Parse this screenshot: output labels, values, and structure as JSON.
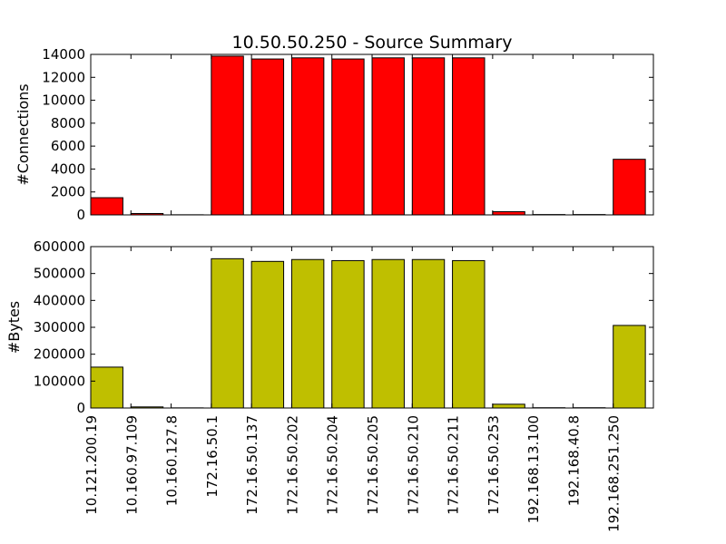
{
  "chart_data": {
    "type": "bar",
    "title": "10.50.50.250 - Source Summary",
    "categories": [
      "10.121.200.19",
      "10.160.97.109",
      "10.160.127.8",
      "172.16.50.1",
      "172.16.50.137",
      "172.16.50.202",
      "172.16.50.204",
      "172.16.50.205",
      "172.16.50.210",
      "172.16.50.211",
      "172.16.50.253",
      "192.168.13.100",
      "192.168.40.8",
      "192.168.251.250"
    ],
    "subplots": [
      {
        "ylabel": "#Connections",
        "ylim": [
          0,
          14000
        ],
        "yticks": [
          0,
          2000,
          4000,
          6000,
          8000,
          10000,
          12000,
          14000
        ],
        "color": "#ff0000",
        "values": [
          1500,
          120,
          10,
          13850,
          13600,
          13700,
          13600,
          13700,
          13700,
          13700,
          280,
          30,
          30,
          4850
        ]
      },
      {
        "ylabel": "#Bytes",
        "ylim": [
          0,
          600000
        ],
        "yticks": [
          0,
          100000,
          200000,
          300000,
          400000,
          500000,
          600000
        ],
        "color": "#bfbf00",
        "values": [
          152000,
          4000,
          500,
          555000,
          545000,
          552000,
          548000,
          552000,
          552000,
          548000,
          14000,
          1000,
          1000,
          307000
        ]
      }
    ],
    "grid": false,
    "legend": "none"
  }
}
